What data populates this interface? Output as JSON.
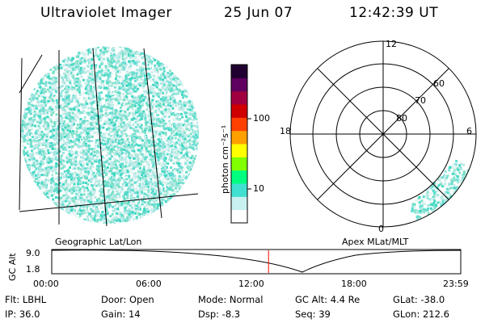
{
  "header": {
    "title": "Ultraviolet Imager",
    "date": "25 Jun 07",
    "time": "12:42:39 UT"
  },
  "colorbar": {
    "unit_label": "photon cm⁻²s⁻¹",
    "ticks": [
      {
        "value": 100,
        "label": "100"
      },
      {
        "value": 10,
        "label": "10"
      }
    ],
    "colors": [
      "#ffffff",
      "#c8f0f0",
      "#40e0d0",
      "#00ff80",
      "#80ff00",
      "#ffff00",
      "#ffa000",
      "#ff4000",
      "#d00000",
      "#a00040",
      "#600060",
      "#200030"
    ]
  },
  "left_panel": {
    "caption": "Geographic Lat/Lon"
  },
  "right_panel": {
    "caption": "Apex MLat/MLT",
    "mlt_labels": {
      "top": "12",
      "left": "18",
      "right": "6",
      "bottom": "0"
    },
    "lat_labels": [
      "60",
      "70",
      "80"
    ]
  },
  "timeline": {
    "y_label": "GC Alt",
    "y_ticks": [
      "9.0",
      "1.8"
    ],
    "x_ticks": [
      "00:00",
      "06:00",
      "12:00",
      "18:00",
      "23:59"
    ],
    "marker_time": "12:42:39",
    "marker_color": "#ff0000"
  },
  "info": {
    "flt": "Flt: LBHL",
    "ip": "IP: 36.0",
    "door": "Door: Open",
    "gain": "Gain: 14",
    "mode": "Mode: Normal",
    "dsp": "Dsp:   -8.3",
    "gc_alt": "GC Alt: 4.4 Re",
    "seq": "Seq: 39",
    "glat": "GLat: -38.0",
    "glon": "GLon: 212.6"
  }
}
